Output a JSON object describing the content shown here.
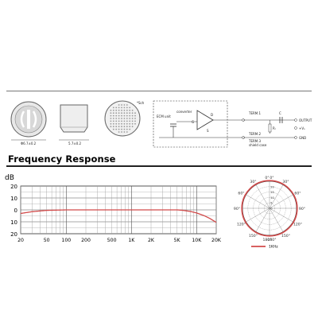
{
  "drawings": {
    "front_view_dim": "Φ6.7±0.2",
    "side_view_dim": "5.7±0.2",
    "back_view_note": "*Sch"
  },
  "circuit": {
    "ecm_label": "ECM unit",
    "converter_label": "converter",
    "term1": "TERM.1",
    "term2": "TERM.2",
    "term3": "TERM.3",
    "shield_label": "shield case",
    "output": "OUTPUT",
    "vs": "+Vₛ",
    "gnd": "GND",
    "rl": "Rₗ",
    "c": "C",
    "pin_g": "G",
    "pin_s": "S",
    "pin_d": "D"
  },
  "section_title": "Frequency Response",
  "chart_data": [
    {
      "type": "line",
      "title": "",
      "ylabel": "dB",
      "xlabel": "",
      "x_scale": "log",
      "xlim": [
        20,
        20000
      ],
      "ylim": [
        -20,
        20
      ],
      "y_ticks": [
        20,
        10,
        0,
        10,
        20
      ],
      "x_ticks": [
        {
          "x": 20,
          "label": "20"
        },
        {
          "x": 50,
          "label": "50"
        },
        {
          "x": 100,
          "label": "100"
        },
        {
          "x": 200,
          "label": "200"
        },
        {
          "x": 500,
          "label": "500"
        },
        {
          "x": 1000,
          "label": "1K"
        },
        {
          "x": 2000,
          "label": "2K"
        },
        {
          "x": 5000,
          "label": "5K"
        },
        {
          "x": 10000,
          "label": "10K"
        },
        {
          "x": 20000,
          "label": "20K"
        }
      ],
      "grid": true,
      "series": [
        {
          "color": "#d24a4a",
          "points": [
            [
              20,
              -3
            ],
            [
              30,
              -1.5
            ],
            [
              50,
              -0.4
            ],
            [
              100,
              0
            ],
            [
              200,
              0
            ],
            [
              500,
              0
            ],
            [
              1000,
              0
            ],
            [
              2000,
              0
            ],
            [
              5000,
              0
            ],
            [
              6000,
              -0.3
            ],
            [
              8000,
              -1.3
            ],
            [
              10000,
              -2.6
            ],
            [
              13000,
              -4.8
            ],
            [
              16000,
              -7.2
            ],
            [
              20000,
              -10.5
            ]
          ]
        }
      ]
    },
    {
      "type": "polar",
      "angle_labels": [
        "0°",
        "0°",
        "30°",
        "30°",
        "60°",
        "60°",
        "90°",
        "90°",
        "120°",
        "120°",
        "150°",
        "150°",
        "180°",
        "180°"
      ],
      "ring_labels": [
        "0",
        "5",
        "10",
        "15",
        "20"
      ],
      "series": [
        {
          "name": "1KHz",
          "color": "#d24a4a",
          "shape": "omnidirectional",
          "relative_level_db": 0
        }
      ]
    }
  ]
}
